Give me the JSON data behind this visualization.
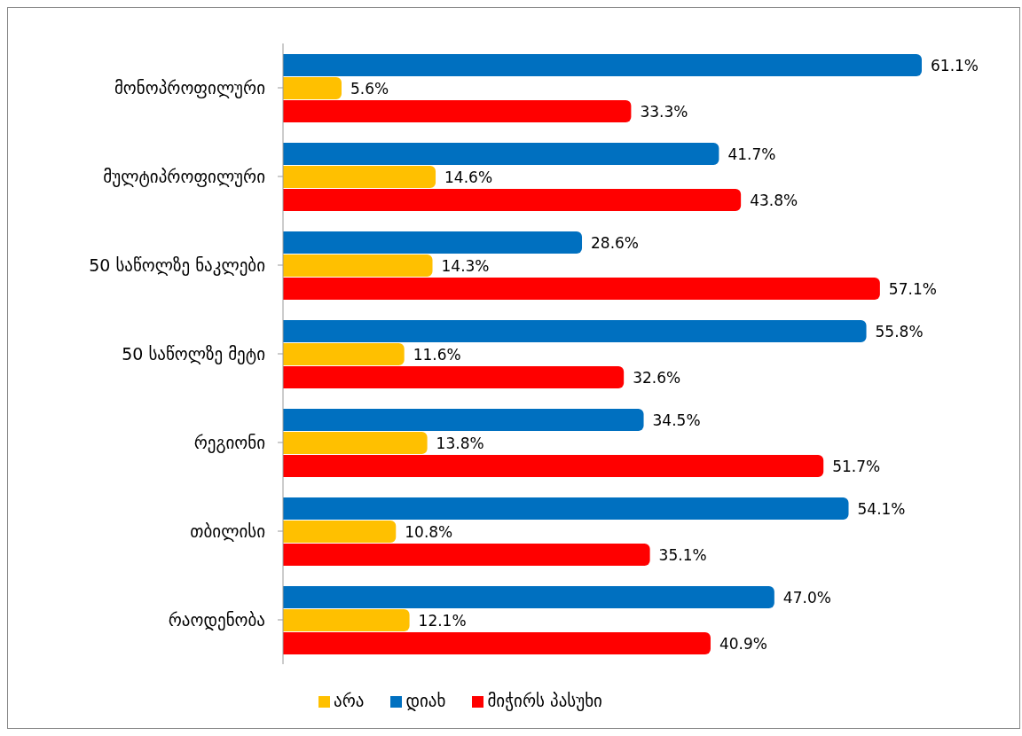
{
  "chart_data": {
    "type": "bar",
    "orientation": "horizontal",
    "legend": "bottom",
    "grid": false,
    "categories": [
      "მონოპროფილური",
      "მულტიპროფილური",
      "50 საწოლზე ნაკლები",
      "50 საწოლზე მეტი",
      "რეგიონი",
      "თბილისი",
      "რაოდენობა"
    ],
    "series": [
      {
        "name": "დიახ",
        "color": "#0070c0",
        "values": [
          61.1,
          41.7,
          28.6,
          55.8,
          34.5,
          54.1,
          47.0
        ],
        "value_labels": [
          "61.1%",
          "41.7%",
          "28.6%",
          "55.8%",
          "34.5%",
          "54.1%",
          "47.0%"
        ]
      },
      {
        "name": "არა",
        "color": "#ffc000",
        "values": [
          5.6,
          14.6,
          14.3,
          11.6,
          13.8,
          10.8,
          12.1
        ],
        "value_labels": [
          "5.6%",
          "14.6%",
          "14.3%",
          "11.6%",
          "13.8%",
          "10.8%",
          "12.1%"
        ]
      },
      {
        "name": "მიჭირს პასუხი",
        "color": "#ff0000",
        "values": [
          33.3,
          43.8,
          57.1,
          32.6,
          51.7,
          35.1,
          40.9
        ],
        "value_labels": [
          "33.3%",
          "43.8%",
          "57.1%",
          "32.6%",
          "51.7%",
          "35.1%",
          "40.9%"
        ]
      }
    ]
  }
}
